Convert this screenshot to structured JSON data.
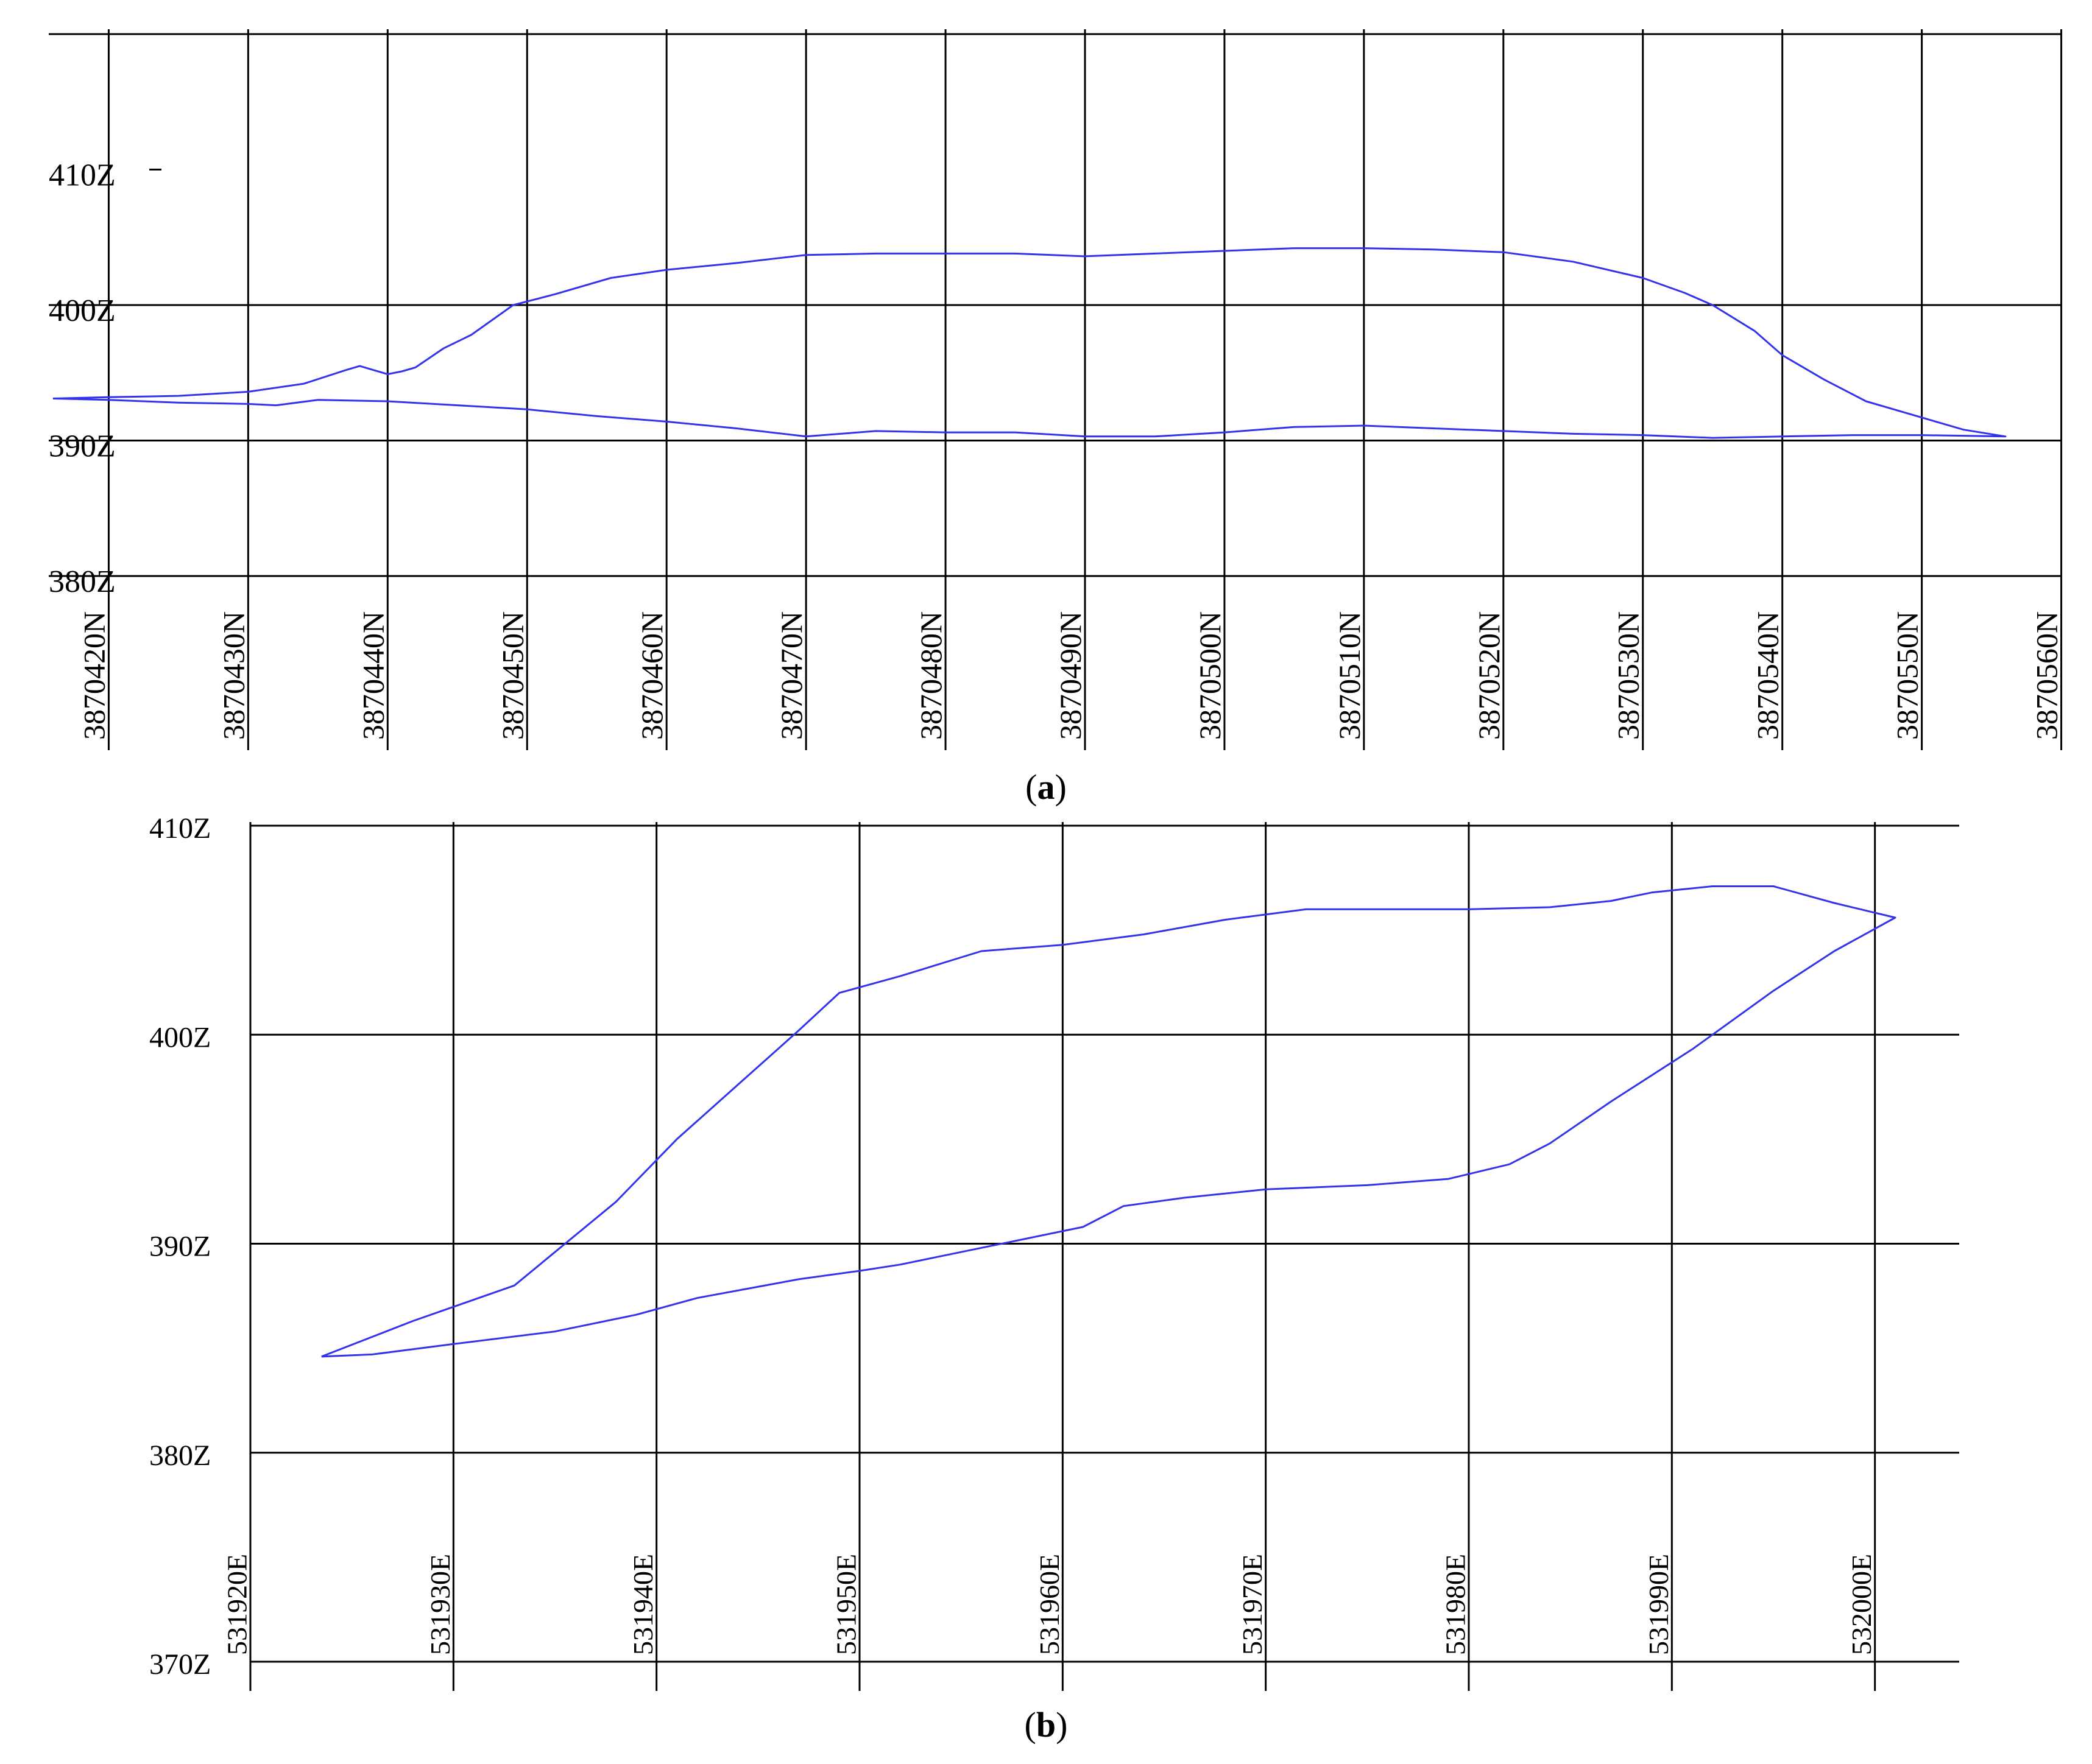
{
  "chart_data": [
    {
      "type": "line",
      "panel_label": "a",
      "x_unit_suffix": "N",
      "y_unit_suffix": "Z",
      "x_ticks": [
        3870420,
        3870430,
        3870440,
        3870450,
        3870460,
        3870470,
        3870480,
        3870490,
        3870500,
        3870510,
        3870520,
        3870530,
        3870540,
        3870550,
        3870560
      ],
      "x_tick_labels": [
        "3870420N",
        "3870430N",
        "3870440N",
        "3870450N",
        "3870460N",
        "3870470N",
        "3870480N",
        "3870490N",
        "3870500N",
        "3870510N",
        "3870520N",
        "3870530N",
        "3870540N",
        "3870550N",
        "3870560N"
      ],
      "y_ticks": [
        380,
        390,
        400,
        410
      ],
      "y_tick_labels": [
        "380Z",
        "390Z",
        "400Z",
        "410Z"
      ],
      "xlim": [
        3870415.7,
        3870560.5
      ],
      "ylim": [
        380,
        420
      ],
      "grid": true,
      "series": [
        {
          "color": "#3333ee",
          "points": [
            [
              3870416,
              393.1
            ],
            [
              3870420,
              393.2
            ],
            [
              3870425,
              393.3
            ],
            [
              3870430,
              393.6
            ],
            [
              3870434,
              394.2
            ],
            [
              3870437,
              395.2
            ],
            [
              3870438,
              395.5
            ],
            [
              3870439,
              395.2
            ],
            [
              3870440,
              394.9
            ],
            [
              3870441,
              395.1
            ],
            [
              3870442,
              395.4
            ],
            [
              3870444,
              396.8
            ],
            [
              3870446,
              397.8
            ],
            [
              3870449,
              400.0
            ],
            [
              3870452,
              400.8
            ],
            [
              3870456,
              402.0
            ],
            [
              3870460,
              402.6
            ],
            [
              3870465,
              403.1
            ],
            [
              3870470,
              403.7
            ],
            [
              3870475,
              403.8
            ],
            [
              3870480,
              403.8
            ],
            [
              3870485,
              403.8
            ],
            [
              3870490,
              403.6
            ],
            [
              3870495,
              403.8
            ],
            [
              3870500,
              404.0
            ],
            [
              3870505,
              404.2
            ],
            [
              3870510,
              404.2
            ],
            [
              3870515,
              404.1
            ],
            [
              3870520,
              403.9
            ],
            [
              3870525,
              403.2
            ],
            [
              3870530,
              402.0
            ],
            [
              3870533,
              400.9
            ],
            [
              3870535,
              400.0
            ],
            [
              3870538,
              398.1
            ],
            [
              3870540,
              396.3
            ],
            [
              3870543,
              394.5
            ],
            [
              3870546,
              392.9
            ],
            [
              3870550,
              391.7
            ],
            [
              3870553,
              390.8
            ],
            [
              3870556,
              390.3
            ],
            [
              3870550,
              390.4
            ],
            [
              3870545,
              390.4
            ],
            [
              3870540,
              390.3
            ],
            [
              3870535,
              390.2
            ],
            [
              3870530,
              390.4
            ],
            [
              3870525,
              390.5
            ],
            [
              3870520,
              390.7
            ],
            [
              3870515,
              390.9
            ],
            [
              3870510,
              391.1
            ],
            [
              3870505,
              391.0
            ],
            [
              3870500,
              390.6
            ],
            [
              3870495,
              390.3
            ],
            [
              3870490,
              390.3
            ],
            [
              3870485,
              390.6
            ],
            [
              3870480,
              390.6
            ],
            [
              3870475,
              390.7
            ],
            [
              3870470,
              390.3
            ],
            [
              3870465,
              390.9
            ],
            [
              3870460,
              391.4
            ],
            [
              3870455,
              391.8
            ],
            [
              3870450,
              392.3
            ],
            [
              3870445,
              392.6
            ],
            [
              3870440,
              392.9
            ],
            [
              3870435,
              393.0
            ],
            [
              3870432,
              392.6
            ],
            [
              3870430,
              392.7
            ],
            [
              3870425,
              392.8
            ],
            [
              3870420,
              393.0
            ],
            [
              3870416,
              393.1
            ]
          ]
        }
      ]
    },
    {
      "type": "line",
      "panel_label": "b",
      "x_unit_suffix": "E",
      "y_unit_suffix": "Z",
      "x_ticks": [
        531920,
        531930,
        531940,
        531950,
        531960,
        531970,
        531980,
        531990,
        532000
      ],
      "x_tick_labels": [
        "531920E",
        "531930E",
        "531940E",
        "531950E",
        "531960E",
        "531970E",
        "531980E",
        "531990E",
        "532000E"
      ],
      "y_ticks": [
        370,
        380,
        390,
        400,
        410
      ],
      "y_tick_labels": [
        "370Z",
        "380Z",
        "390Z",
        "400Z",
        "410Z"
      ],
      "xlim": [
        531920,
        532002.5
      ],
      "ylim": [
        370,
        410
      ],
      "grid": true,
      "series": [
        {
          "color": "#3333ee",
          "points": [
            [
              531923.5,
              384.6
            ],
            [
              531928,
              386.3
            ],
            [
              531933,
              388.0
            ],
            [
              531935,
              389.6
            ],
            [
              531938,
              392.0
            ],
            [
              531941,
              395.0
            ],
            [
              531944,
              397.6
            ],
            [
              531947,
              400.2
            ],
            [
              531949,
              402.0
            ],
            [
              531952,
              402.8
            ],
            [
              531956,
              404.0
            ],
            [
              531960,
              404.3
            ],
            [
              531964,
              404.8
            ],
            [
              531968,
              405.5
            ],
            [
              531972,
              406.0
            ],
            [
              531976,
              406.0
            ],
            [
              531980,
              406.0
            ],
            [
              531984,
              406.1
            ],
            [
              531987,
              406.4
            ],
            [
              531989,
              406.8
            ],
            [
              531992,
              407.1
            ],
            [
              531995,
              407.1
            ],
            [
              531998,
              406.3
            ],
            [
              532001,
              405.6
            ],
            [
              531998,
              404.0
            ],
            [
              531995,
              402.1
            ],
            [
              531991,
              399.3
            ],
            [
              531987,
              396.8
            ],
            [
              531984,
              394.8
            ],
            [
              531982,
              393.8
            ],
            [
              531979,
              393.1
            ],
            [
              531975,
              392.8
            ],
            [
              531970,
              392.6
            ],
            [
              531966,
              392.2
            ],
            [
              531963,
              391.8
            ],
            [
              531961,
              390.8
            ],
            [
              531958,
              390.2
            ],
            [
              531955,
              389.6
            ],
            [
              531952,
              389.0
            ],
            [
              531950,
              388.7
            ],
            [
              531947,
              388.3
            ],
            [
              531942,
              387.4
            ],
            [
              531939,
              386.6
            ],
            [
              531935,
              385.8
            ],
            [
              531930,
              385.2
            ],
            [
              531926,
              384.7
            ],
            [
              531923.5,
              384.6
            ]
          ]
        }
      ]
    }
  ]
}
